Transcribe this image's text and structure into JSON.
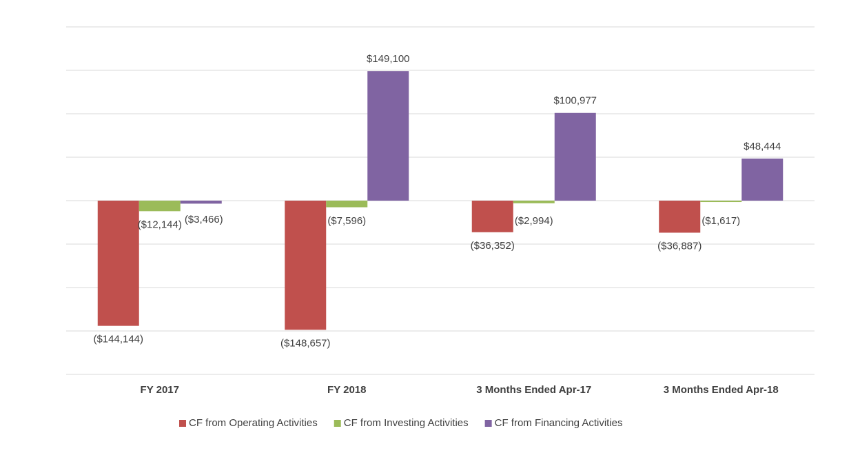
{
  "chart_data": {
    "type": "bar",
    "categories": [
      "FY 2017",
      "FY 2018",
      "3 Months Ended Apr-17",
      "3 Months Ended Apr-18"
    ],
    "series": [
      {
        "name": "CF from Operating Activities",
        "color": "#c0504d",
        "values": [
          -144144,
          -148657,
          -36352,
          -36887
        ],
        "value_labels": [
          "($144,144)",
          "($148,657)",
          "($36,352)",
          "($36,887)"
        ]
      },
      {
        "name": "CF from Investing Activities",
        "color": "#9bbb59",
        "values": [
          -12144,
          -7596,
          -2994,
          -1617
        ],
        "value_labels": [
          "($12,144)",
          "($7,596)",
          "($2,994)",
          "($1,617)"
        ]
      },
      {
        "name": "CF from Financing Activities",
        "color": "#8064a2",
        "values": [
          -3466,
          149100,
          100977,
          48444
        ],
        "value_labels": [
          "($3,466)",
          "$149,100",
          "$100,977",
          "$48,444"
        ]
      }
    ],
    "ylim": [
      -200000,
      200000
    ],
    "yticks": [
      -200000,
      -150000,
      -100000,
      -50000,
      0,
      50000,
      100000,
      150000,
      200000
    ],
    "grid": true
  }
}
